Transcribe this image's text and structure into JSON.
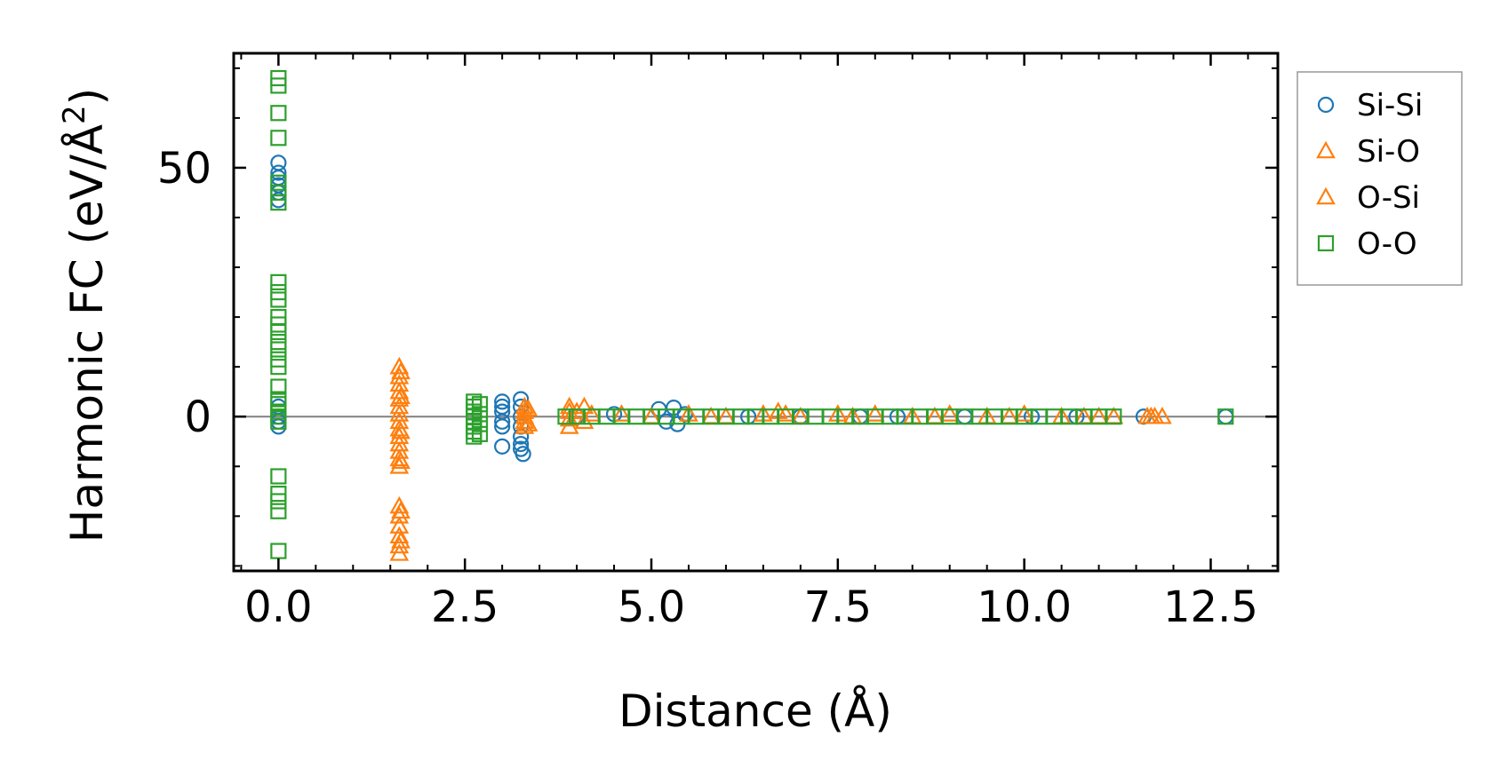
{
  "chart_data": {
    "type": "scatter",
    "title": "",
    "xlabel": "Distance (Å)",
    "ylabel_main": "Harmonic FC (eV/Å",
    "ylabel_sup": "2",
    "ylabel_close": ")",
    "xlim": [
      -0.6,
      13.4
    ],
    "ylim": [
      -31,
      73
    ],
    "xticks": [
      0.0,
      2.5,
      5.0,
      7.5,
      10.0,
      12.5
    ],
    "xtick_labels": [
      "0.0",
      "2.5",
      "5.0",
      "7.5",
      "10.0",
      "12.5"
    ],
    "yticks": [
      0,
      50
    ],
    "ytick_labels": [
      "0",
      "50"
    ],
    "zero_line": true,
    "legend": {
      "position": "outside-right-top",
      "entries": [
        "Si-Si",
        "Si-O",
        "O-Si",
        "O-O"
      ]
    },
    "colors": {
      "blue": "#1f77b4",
      "orange": "#ff7f0e",
      "green": "#2ca02c",
      "zero_line": "#808080"
    },
    "series": [
      {
        "name": "Si-Si",
        "marker": "circle",
        "color": "#1f77b4",
        "points": [
          [
            0,
            51
          ],
          [
            0,
            49
          ],
          [
            0,
            48
          ],
          [
            0,
            46.5
          ],
          [
            0,
            45
          ],
          [
            0,
            43.5
          ],
          [
            0,
            2
          ],
          [
            0,
            0
          ],
          [
            0,
            -1
          ],
          [
            0,
            -2
          ],
          [
            3.0,
            3
          ],
          [
            3.0,
            2
          ],
          [
            3.0,
            1
          ],
          [
            3.0,
            -1
          ],
          [
            3.0,
            -2
          ],
          [
            3.0,
            -6
          ],
          [
            3.25,
            3.5
          ],
          [
            3.25,
            2
          ],
          [
            3.25,
            0
          ],
          [
            3.25,
            -2
          ],
          [
            3.25,
            -4
          ],
          [
            3.25,
            -5.5
          ],
          [
            3.25,
            -6.5
          ],
          [
            3.28,
            -7.5
          ],
          [
            4.0,
            0
          ],
          [
            4.5,
            0.5
          ],
          [
            5.1,
            1.5
          ],
          [
            5.2,
            -1
          ],
          [
            5.3,
            1.8
          ],
          [
            5.35,
            -1.5
          ],
          [
            5.45,
            0.5
          ],
          [
            6.3,
            0
          ],
          [
            7.0,
            0
          ],
          [
            7.8,
            0
          ],
          [
            8.3,
            0
          ],
          [
            9.2,
            0
          ],
          [
            10.1,
            0
          ],
          [
            10.7,
            0
          ],
          [
            11.6,
            0
          ],
          [
            12.7,
            0
          ]
        ]
      },
      {
        "name": "Si-O",
        "marker": "triangle",
        "color": "#ff7f0e",
        "points": [
          [
            1.62,
            10
          ],
          [
            1.62,
            8
          ],
          [
            1.62,
            6.5
          ],
          [
            1.62,
            5
          ],
          [
            1.62,
            3.5
          ],
          [
            1.62,
            2
          ],
          [
            1.62,
            0.5
          ],
          [
            1.62,
            -1
          ],
          [
            1.62,
            -2.5
          ],
          [
            1.62,
            -4
          ],
          [
            1.62,
            -5.5
          ],
          [
            1.62,
            -7
          ],
          [
            1.62,
            -8.5
          ],
          [
            1.62,
            -10
          ],
          [
            1.62,
            -18
          ],
          [
            1.62,
            -20
          ],
          [
            1.62,
            -22
          ],
          [
            1.62,
            -24
          ],
          [
            1.62,
            -26
          ],
          [
            1.62,
            -27.5
          ],
          [
            3.3,
            2
          ],
          [
            3.3,
            1
          ],
          [
            3.3,
            0
          ],
          [
            3.3,
            -1
          ],
          [
            3.3,
            -2
          ],
          [
            3.9,
            2
          ],
          [
            3.9,
            1
          ],
          [
            3.9,
            -0.5
          ],
          [
            3.9,
            -2
          ],
          [
            4.0,
            1
          ],
          [
            4.1,
            2
          ],
          [
            4.1,
            -1
          ],
          [
            4.6,
            0.5
          ],
          [
            5.0,
            0
          ],
          [
            5.5,
            0.5
          ],
          [
            6.0,
            0
          ],
          [
            6.5,
            0.5
          ],
          [
            6.7,
            1
          ],
          [
            7.0,
            0
          ],
          [
            7.5,
            0.5
          ],
          [
            8.0,
            0.5
          ],
          [
            8.5,
            0
          ],
          [
            9.0,
            0.5
          ],
          [
            9.5,
            0
          ],
          [
            10.0,
            0.5
          ],
          [
            10.5,
            0
          ],
          [
            11.0,
            0
          ],
          [
            11.2,
            0
          ],
          [
            11.65,
            0
          ],
          [
            11.75,
            0
          ],
          [
            11.85,
            0
          ]
        ]
      },
      {
        "name": "O-Si",
        "marker": "triangle",
        "color": "#ff7f0e",
        "points": [
          [
            1.64,
            9
          ],
          [
            1.64,
            4
          ],
          [
            1.64,
            -3
          ],
          [
            1.64,
            -9
          ],
          [
            1.64,
            -19
          ],
          [
            1.64,
            -25
          ],
          [
            3.35,
            1.5
          ],
          [
            3.35,
            -1.5
          ],
          [
            4.2,
            0.5
          ],
          [
            5.8,
            0
          ],
          [
            6.8,
            0.5
          ],
          [
            7.7,
            0
          ],
          [
            8.8,
            0
          ],
          [
            9.8,
            0
          ],
          [
            10.8,
            0
          ],
          [
            11.7,
            0
          ]
        ]
      },
      {
        "name": "O-O",
        "marker": "square",
        "color": "#2ca02c",
        "points": [
          [
            0,
            68
          ],
          [
            0,
            66.5
          ],
          [
            0,
            61
          ],
          [
            0,
            56
          ],
          [
            0,
            47
          ],
          [
            0,
            45
          ],
          [
            0,
            43
          ],
          [
            0,
            27
          ],
          [
            0,
            25
          ],
          [
            0,
            23.5
          ],
          [
            0,
            20
          ],
          [
            0,
            18.5
          ],
          [
            0,
            17
          ],
          [
            0,
            15
          ],
          [
            0,
            13.5
          ],
          [
            0,
            11.5
          ],
          [
            0,
            10
          ],
          [
            0,
            6
          ],
          [
            0,
            3.5
          ],
          [
            0,
            2.5
          ],
          [
            0,
            1
          ],
          [
            0,
            0
          ],
          [
            0,
            -1
          ],
          [
            0,
            -12
          ],
          [
            0,
            -15.5
          ],
          [
            0,
            -17
          ],
          [
            0,
            -19
          ],
          [
            0,
            -27
          ],
          [
            2.62,
            3
          ],
          [
            2.62,
            2
          ],
          [
            2.62,
            1
          ],
          [
            2.62,
            0
          ],
          [
            2.62,
            -1
          ],
          [
            2.62,
            -2
          ],
          [
            2.62,
            -3
          ],
          [
            2.62,
            -4
          ],
          [
            2.7,
            2.5
          ],
          [
            2.7,
            0.5
          ],
          [
            2.7,
            -1.5
          ],
          [
            2.7,
            -3.5
          ],
          [
            3.85,
            0
          ],
          [
            4.0,
            0
          ],
          [
            4.2,
            0
          ],
          [
            4.4,
            0
          ],
          [
            4.6,
            0
          ],
          [
            4.8,
            0
          ],
          [
            5.0,
            0
          ],
          [
            5.2,
            0
          ],
          [
            5.4,
            0
          ],
          [
            5.6,
            0
          ],
          [
            5.8,
            0
          ],
          [
            6.0,
            0
          ],
          [
            6.2,
            0
          ],
          [
            6.4,
            0
          ],
          [
            6.6,
            0
          ],
          [
            6.8,
            0
          ],
          [
            7.0,
            0
          ],
          [
            7.2,
            0
          ],
          [
            7.4,
            0
          ],
          [
            7.6,
            0
          ],
          [
            7.8,
            0
          ],
          [
            8.0,
            0
          ],
          [
            8.2,
            0
          ],
          [
            8.4,
            0
          ],
          [
            8.6,
            0
          ],
          [
            8.8,
            0
          ],
          [
            9.0,
            0
          ],
          [
            9.2,
            0
          ],
          [
            9.4,
            0
          ],
          [
            9.6,
            0
          ],
          [
            9.8,
            0
          ],
          [
            10.0,
            0
          ],
          [
            10.2,
            0
          ],
          [
            10.4,
            0
          ],
          [
            10.6,
            0
          ],
          [
            10.8,
            0
          ],
          [
            11.0,
            0
          ],
          [
            11.2,
            0
          ],
          [
            12.7,
            0
          ]
        ]
      }
    ]
  }
}
